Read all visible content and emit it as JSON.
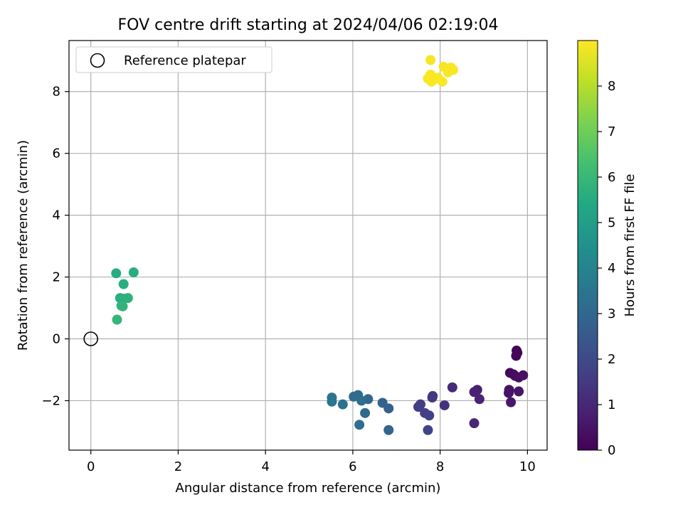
{
  "chart_data": {
    "type": "scatter",
    "title": "FOV centre drift starting at 2024/04/06 02:19:04",
    "xlabel": "Angular distance from reference (arcmin)",
    "ylabel": "Rotation from reference (arcmin)",
    "xlim": [
      -0.5,
      10.45
    ],
    "ylim": [
      -3.6,
      9.65
    ],
    "xticks": [
      0,
      2,
      4,
      6,
      8,
      10
    ],
    "yticks": [
      -2,
      0,
      2,
      4,
      6,
      8
    ],
    "grid": true,
    "legend": {
      "location": "upper-left",
      "entries": [
        "Reference platepar"
      ]
    },
    "reference_point": {
      "x": 0,
      "y": 0
    },
    "colorbar": {
      "label": "Hours from first FF file",
      "range": [
        0,
        9
      ],
      "ticks": [
        0,
        1,
        2,
        3,
        4,
        5,
        6,
        7,
        8
      ],
      "colormap": "viridis"
    },
    "points": [
      {
        "x": 9.75,
        "y": -0.38,
        "h": 0.05
      },
      {
        "x": 9.77,
        "y": -0.45,
        "h": 0.1
      },
      {
        "x": 9.74,
        "y": -0.55,
        "h": 0.15
      },
      {
        "x": 9.6,
        "y": -1.1,
        "h": 0.2
      },
      {
        "x": 9.68,
        "y": -1.15,
        "h": 0.25
      },
      {
        "x": 9.72,
        "y": -1.2,
        "h": 0.3
      },
      {
        "x": 9.8,
        "y": -1.25,
        "h": 0.35
      },
      {
        "x": 9.9,
        "y": -1.18,
        "h": 0.4
      },
      {
        "x": 9.58,
        "y": -1.65,
        "h": 0.45
      },
      {
        "x": 9.57,
        "y": -1.75,
        "h": 0.5
      },
      {
        "x": 9.8,
        "y": -1.7,
        "h": 0.55
      },
      {
        "x": 9.62,
        "y": -2.05,
        "h": 0.6
      },
      {
        "x": 8.85,
        "y": -1.65,
        "h": 0.8
      },
      {
        "x": 8.78,
        "y": -1.72,
        "h": 0.85
      },
      {
        "x": 8.9,
        "y": -1.95,
        "h": 0.9
      },
      {
        "x": 8.78,
        "y": -2.73,
        "h": 0.95
      },
      {
        "x": 8.28,
        "y": -1.57,
        "h": 1.1
      },
      {
        "x": 8.1,
        "y": -2.15,
        "h": 1.3
      },
      {
        "x": 7.83,
        "y": -1.85,
        "h": 1.45
      },
      {
        "x": 7.82,
        "y": -1.9,
        "h": 1.5
      },
      {
        "x": 7.55,
        "y": -2.12,
        "h": 1.6
      },
      {
        "x": 7.5,
        "y": -2.2,
        "h": 1.65
      },
      {
        "x": 7.65,
        "y": -2.4,
        "h": 1.7
      },
      {
        "x": 7.75,
        "y": -2.48,
        "h": 1.75
      },
      {
        "x": 7.72,
        "y": -2.95,
        "h": 1.8
      },
      {
        "x": 6.82,
        "y": -2.25,
        "h": 2.8
      },
      {
        "x": 6.68,
        "y": -2.07,
        "h": 2.85
      },
      {
        "x": 6.82,
        "y": -2.95,
        "h": 2.9
      },
      {
        "x": 6.35,
        "y": -1.95,
        "h": 3.0
      },
      {
        "x": 6.28,
        "y": -2.4,
        "h": 3.05
      },
      {
        "x": 6.12,
        "y": -1.82,
        "h": 3.1
      },
      {
        "x": 6.02,
        "y": -1.87,
        "h": 3.15
      },
      {
        "x": 6.2,
        "y": -2.0,
        "h": 3.2
      },
      {
        "x": 6.15,
        "y": -2.78,
        "h": 3.25
      },
      {
        "x": 5.77,
        "y": -2.12,
        "h": 3.35
      },
      {
        "x": 5.52,
        "y": -1.9,
        "h": 3.45
      },
      {
        "x": 5.52,
        "y": -2.03,
        "h": 3.5
      },
      {
        "x": 0.58,
        "y": 2.12,
        "h": 5.5
      },
      {
        "x": 0.98,
        "y": 2.15,
        "h": 5.55
      },
      {
        "x": 0.75,
        "y": 1.77,
        "h": 5.6
      },
      {
        "x": 0.67,
        "y": 1.32,
        "h": 5.65
      },
      {
        "x": 0.76,
        "y": 1.3,
        "h": 5.7
      },
      {
        "x": 0.85,
        "y": 1.32,
        "h": 5.75
      },
      {
        "x": 0.7,
        "y": 1.07,
        "h": 5.8
      },
      {
        "x": 0.73,
        "y": 1.05,
        "h": 5.85
      },
      {
        "x": 0.6,
        "y": 0.62,
        "h": 5.9
      },
      {
        "x": 7.78,
        "y": 9.02,
        "h": 8.9
      },
      {
        "x": 8.08,
        "y": 8.8,
        "h": 8.92
      },
      {
        "x": 8.25,
        "y": 8.78,
        "h": 8.95
      },
      {
        "x": 8.3,
        "y": 8.7,
        "h": 8.95
      },
      {
        "x": 8.18,
        "y": 8.62,
        "h": 8.95
      },
      {
        "x": 7.78,
        "y": 8.55,
        "h": 8.95
      },
      {
        "x": 7.72,
        "y": 8.42,
        "h": 8.95
      },
      {
        "x": 7.85,
        "y": 8.38,
        "h": 8.95
      },
      {
        "x": 7.8,
        "y": 8.32,
        "h": 8.95
      },
      {
        "x": 8.05,
        "y": 8.32,
        "h": 8.95
      },
      {
        "x": 7.95,
        "y": 8.45,
        "h": 8.95
      }
    ]
  }
}
